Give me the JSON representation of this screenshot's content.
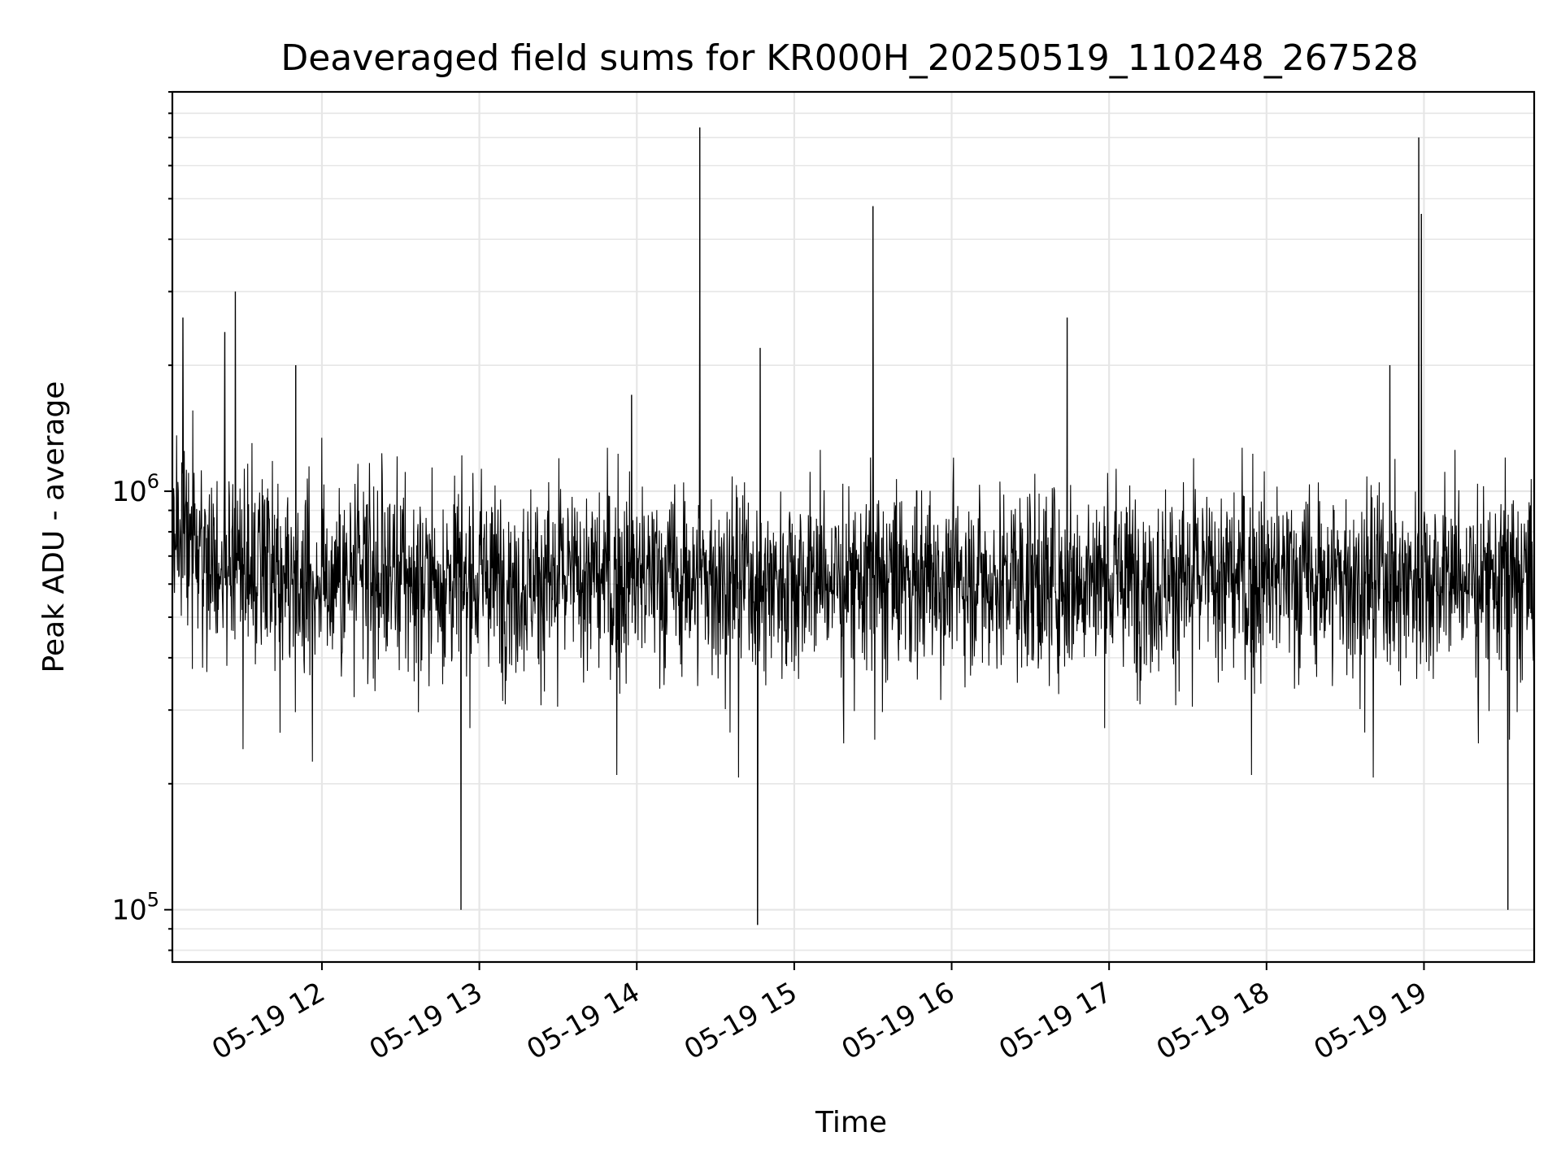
{
  "chart_data": {
    "type": "line",
    "title": "Deaveraged field sums for KR000H_20250519_110248_267528",
    "xlabel": "Time",
    "ylabel": "Peak ADU - average",
    "yscale": "log",
    "xlim": [
      "2025-05-19 11:03",
      "2025-05-19 19:42"
    ],
    "ylim": [
      75000,
      9000000
    ],
    "grid": true,
    "line_color": "#000000",
    "grid_color": "#e6e6e6",
    "x_ticks": [
      "05-19 12",
      "05-19 13",
      "05-19 14",
      "05-19 15",
      "05-19 16",
      "05-19 17",
      "05-19 18",
      "05-19 19"
    ],
    "y_ticks": [
      {
        "base": "10",
        "exp": "5",
        "value": 100000
      },
      {
        "base": "10",
        "exp": "6",
        "value": 1000000
      }
    ],
    "series": [
      {
        "points_note_omitted": true,
        "baseline_median": 620000,
        "peaks": [
          {
            "t": "2025-05-19 11:07",
            "y": 2600000
          },
          {
            "t": "2025-05-19 11:23",
            "y": 2400000
          },
          {
            "t": "2025-05-19 11:27",
            "y": 3000000
          },
          {
            "t": "2025-05-19 11:50",
            "y": 2000000
          },
          {
            "t": "2025-05-19 12:53",
            "y": 100000
          },
          {
            "t": "2025-05-19 13:58",
            "y": 1700000
          },
          {
            "t": "2025-05-19 14:24",
            "y": 7400000
          },
          {
            "t": "2025-05-19 14:46",
            "y": 92000
          },
          {
            "t": "2025-05-19 14:47",
            "y": 2200000
          },
          {
            "t": "2025-05-19 15:30",
            "y": 4800000
          },
          {
            "t": "2025-05-19 16:44",
            "y": 2600000
          },
          {
            "t": "2025-05-19 18:47",
            "y": 2000000
          },
          {
            "t": "2025-05-19 18:58",
            "y": 7000000
          },
          {
            "t": "2025-05-19 18:59",
            "y": 4600000
          },
          {
            "t": "2025-05-19 19:32",
            "y": 100000
          }
        ]
      }
    ]
  }
}
